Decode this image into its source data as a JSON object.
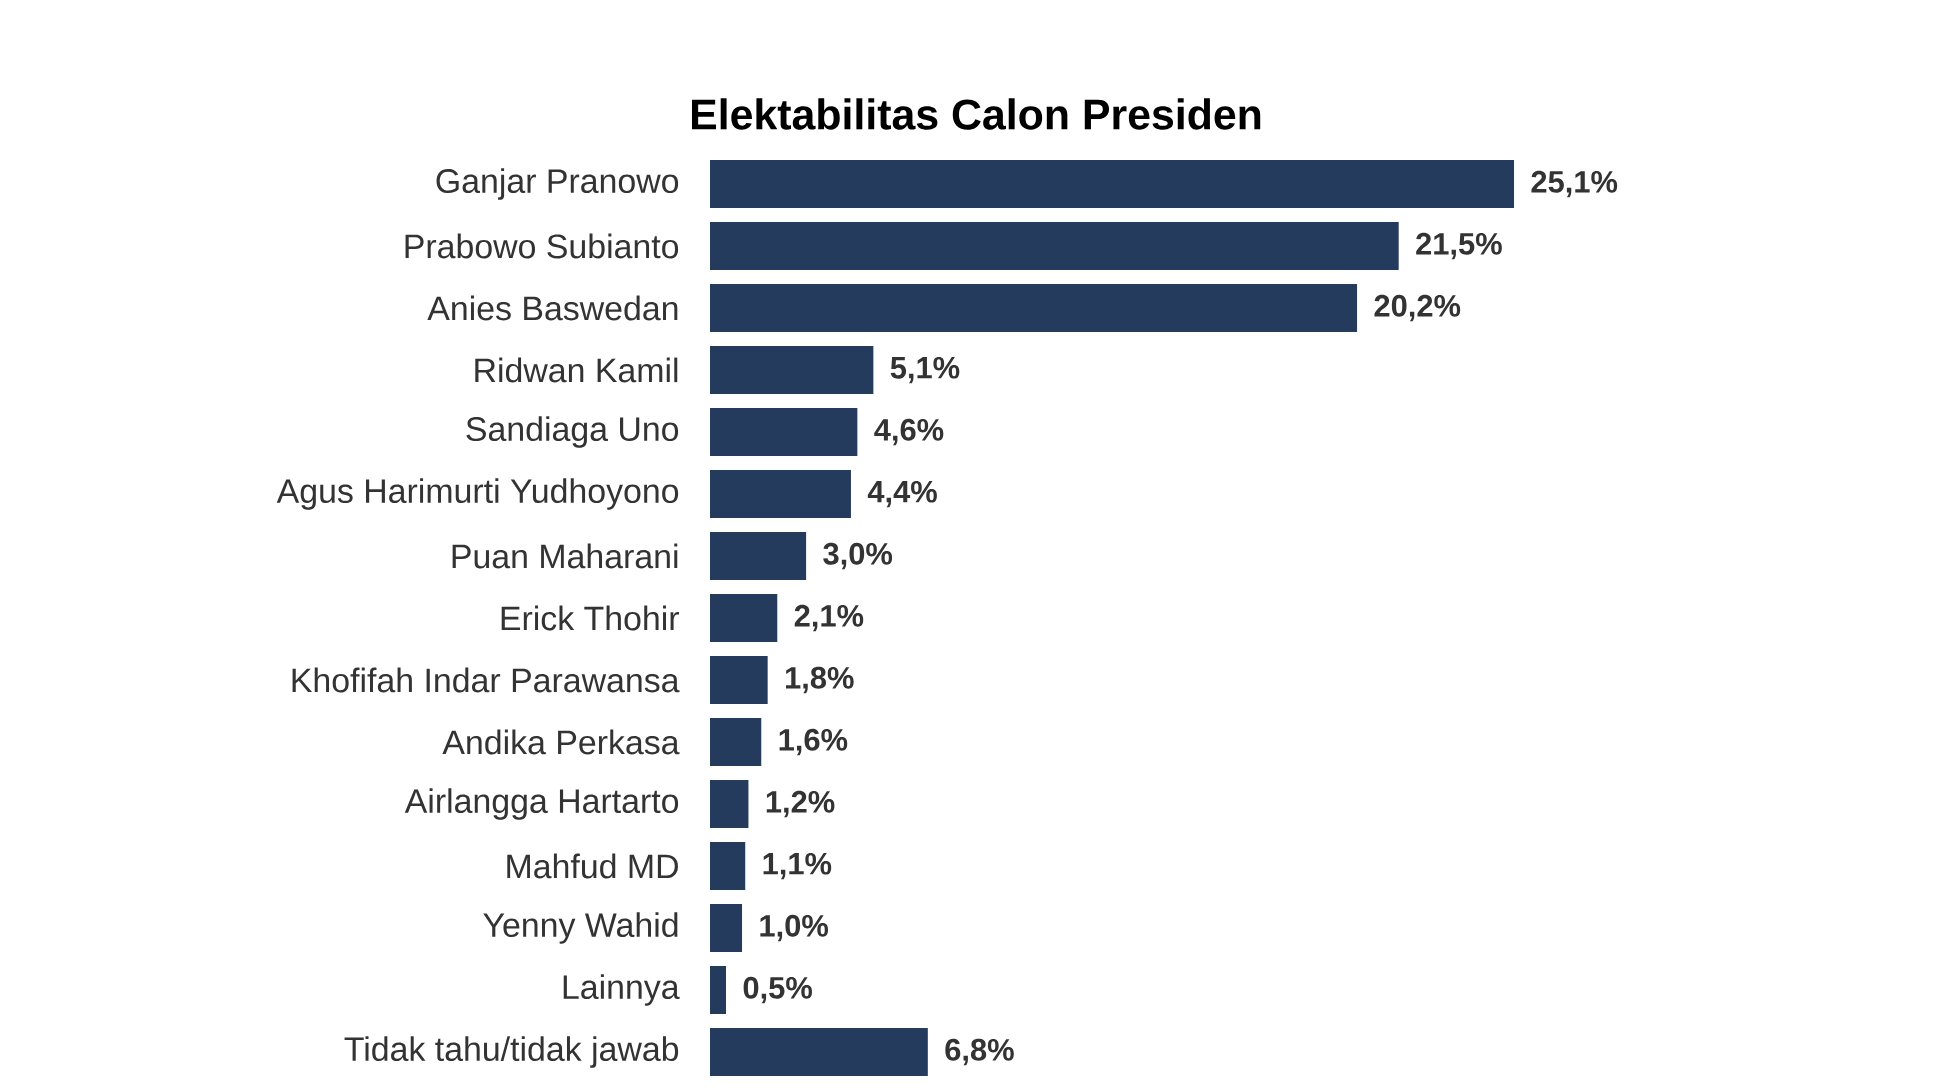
{
  "chart_data": {
    "type": "bar",
    "orientation": "horizontal",
    "title": "Elektabilitas Calon Presiden",
    "categories": [
      "Ganjar Pranowo",
      "Prabowo Subianto",
      "Anies Baswedan",
      "Ridwan Kamil",
      "Sandiaga Uno",
      "Agus Harimurti Yudhoyono",
      "Puan Maharani",
      "Erick Thohir",
      "Khofifah Indar Parawansa",
      "Andika Perkasa",
      "Airlangga Hartarto",
      "Mahfud MD",
      "Yenny Wahid",
      "Lainnya",
      "Tidak tahu/tidak jawab"
    ],
    "values": [
      25.1,
      21.5,
      20.2,
      5.1,
      4.6,
      4.4,
      3.0,
      2.1,
      1.8,
      1.6,
      1.2,
      1.1,
      1.0,
      0.5,
      6.8
    ],
    "value_labels": [
      "25,1%",
      "21,5%",
      "20,2%",
      "5,1%",
      "4,6%",
      "4,4%",
      "3,0%",
      "2,1%",
      "1,8%",
      "1,6%",
      "1,2%",
      "1,1%",
      "1,0%",
      "0,5%",
      "6,8%"
    ],
    "color": "#243b5e"
  }
}
